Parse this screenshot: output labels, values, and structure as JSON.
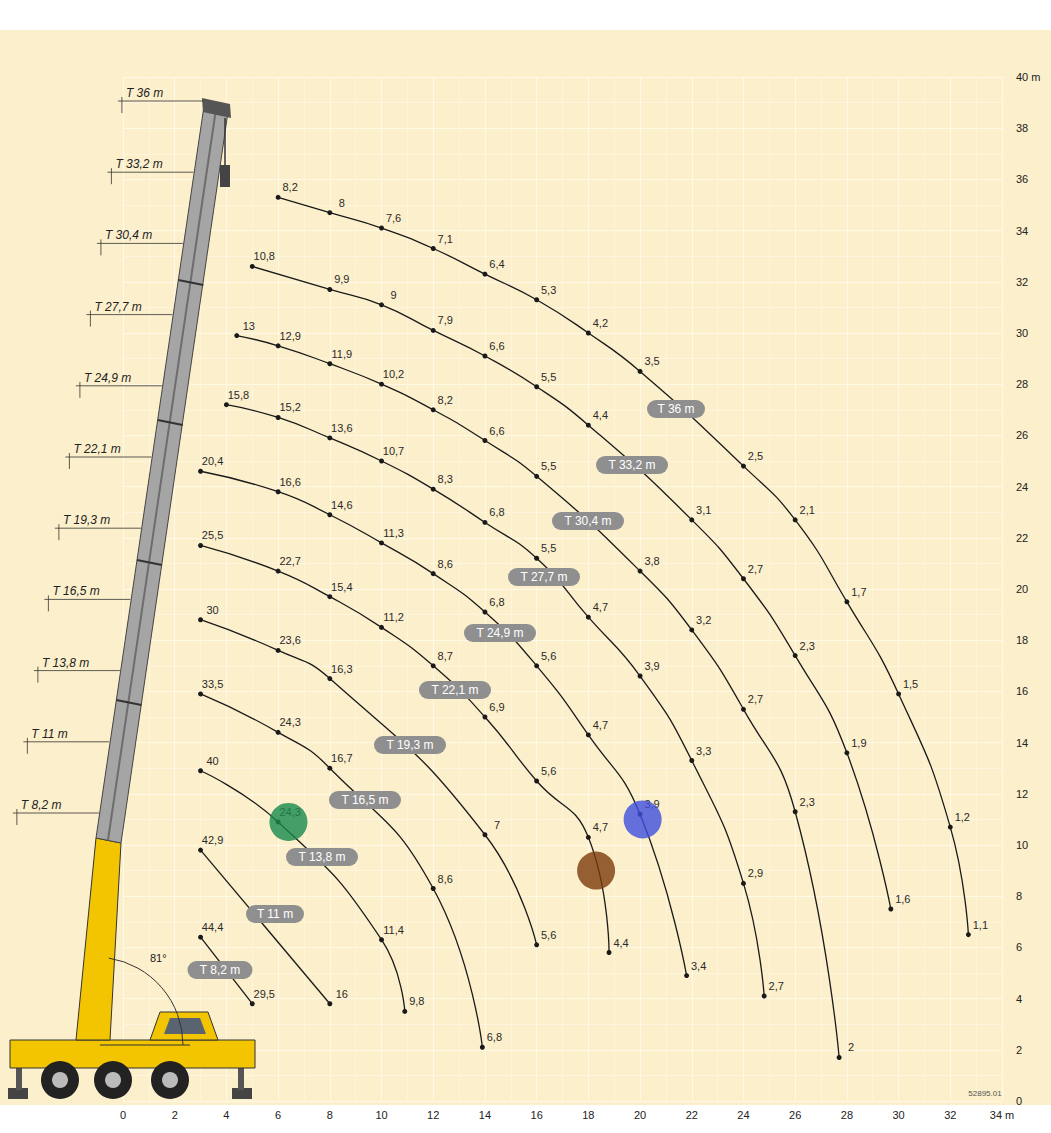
{
  "chart_data": {
    "type": "line",
    "xlim": [
      0,
      34
    ],
    "xticks": [
      0,
      2,
      4,
      6,
      8,
      10,
      12,
      14,
      16,
      18,
      20,
      22,
      24,
      26,
      28,
      30,
      32,
      {
        "value": 34,
        "label": "34 m"
      }
    ],
    "ylim": [
      0,
      40
    ],
    "yticks": [
      0,
      2,
      4,
      6,
      8,
      10,
      12,
      14,
      16,
      18,
      20,
      22,
      24,
      26,
      28,
      30,
      32,
      34,
      36,
      38,
      {
        "value": 40,
        "label": "40 m"
      }
    ],
    "grid": true,
    "data_labels": true,
    "marker": "circle",
    "line_style": "solid",
    "color": "#1a1a1a",
    "series": [
      {
        "name": "T 8,2 m",
        "x": [
          3,
          5
        ],
        "values": [
          6.4,
          3.8
        ],
        "loads": [
          44.4,
          29.5
        ],
        "load_labels": [
          "44,4",
          "29,5"
        ]
      },
      {
        "name": "T 11 m",
        "x": [
          3,
          8
        ],
        "values": [
          9.8,
          3.8
        ],
        "loads": [
          42.9,
          16
        ],
        "load_labels": [
          "42,9",
          "16"
        ]
      },
      {
        "name": "T 13,8 m",
        "x": [
          3,
          6,
          10,
          10.9
        ],
        "values": [
          12.9,
          10.9,
          6.3,
          3.5
        ],
        "loads": [
          40,
          24.3,
          11.4,
          9.8
        ],
        "load_labels": [
          "40",
          "24,3",
          "11,4",
          "9,8"
        ]
      },
      {
        "name": "T 16,5 m",
        "x": [
          3,
          6,
          8,
          12,
          13.9
        ],
        "values": [
          15.9,
          14.4,
          13.0,
          8.3,
          2.1
        ],
        "loads": [
          33.5,
          24.3,
          16.7,
          8.6,
          6.8
        ],
        "load_labels": [
          "33,5",
          "24,3",
          "16,7",
          "8,6",
          "6,8"
        ]
      },
      {
        "name": "T 19,3 m",
        "x": [
          3,
          6,
          8,
          14,
          16
        ],
        "values": [
          18.8,
          17.6,
          16.5,
          10.4,
          6.1
        ],
        "loads": [
          30,
          23.6,
          16.3,
          7,
          5.6
        ],
        "load_labels": [
          "30",
          "23,6",
          "16,3",
          "7",
          "5,6"
        ]
      },
      {
        "name": "T 22,1 m",
        "x": [
          3,
          6,
          8,
          10,
          12,
          14,
          16,
          18,
          18.8
        ],
        "values": [
          21.7,
          20.7,
          19.7,
          18.5,
          17.0,
          15.0,
          12.5,
          10.3,
          5.8
        ],
        "loads": [
          25.5,
          22.7,
          15.4,
          11.2,
          8.7,
          6.9,
          5.6,
          4.7,
          4.4
        ],
        "load_labels": [
          "25,5",
          "22,7",
          "15,4",
          "11,2",
          "8,7",
          "6,9",
          "5,6",
          "4,7",
          "4,4"
        ]
      },
      {
        "name": "T 24,9 m",
        "x": [
          3,
          6,
          8,
          10,
          12,
          14,
          16,
          18,
          20,
          21.8
        ],
        "values": [
          24.6,
          23.8,
          22.9,
          21.8,
          20.6,
          19.1,
          17.0,
          14.3,
          11.2,
          4.9
        ],
        "loads": [
          20.4,
          16.6,
          14.6,
          11.3,
          8.6,
          6.8,
          5.6,
          4.7,
          3.9,
          3.4
        ],
        "load_labels": [
          "20,4",
          "16,6",
          "14,6",
          "11,3",
          "8,6",
          "6,8",
          "5,6",
          "4,7",
          "3,9",
          "3,4"
        ]
      },
      {
        "name": "T 27,7 m",
        "x": [
          4,
          6,
          8,
          10,
          12,
          14,
          16,
          18,
          20,
          22,
          24,
          24.8
        ],
        "values": [
          27.2,
          26.7,
          25.9,
          25.0,
          23.9,
          22.6,
          21.2,
          18.9,
          16.6,
          13.3,
          8.5,
          4.1
        ],
        "loads": [
          15.8,
          15.2,
          13.6,
          10.7,
          8.3,
          6.8,
          5.5,
          4.7,
          3.9,
          3.3,
          2.9,
          2.7
        ],
        "load_labels": [
          "15,8",
          "15,2",
          "13,6",
          "10,7",
          "8,3",
          "6,8",
          "5,5",
          "4,7",
          "3,9",
          "3,3",
          "2,9",
          "2,7"
        ]
      },
      {
        "name": "T 30,4 m",
        "x": [
          4.4,
          6,
          8,
          10,
          12,
          14,
          16,
          20,
          22,
          24,
          26,
          27.7
        ],
        "values": [
          29.9,
          29.5,
          28.8,
          28.0,
          27.0,
          25.8,
          24.4,
          20.7,
          18.4,
          15.3,
          11.3,
          1.7
        ],
        "loads": [
          13,
          12.9,
          11.9,
          10.2,
          8.2,
          6.6,
          5.5,
          3.8,
          3.2,
          2.7,
          2.3,
          2
        ],
        "load_labels": [
          "13",
          "12,9",
          "11,9",
          "10,2",
          "8,2",
          "6,6",
          "5,5",
          "3,8",
          "3,2",
          "2,7",
          "2,3",
          "2"
        ]
      },
      {
        "name": "T 33,2 m",
        "x": [
          5,
          8,
          10,
          12,
          14,
          16,
          18,
          22,
          24,
          26,
          28,
          29.7
        ],
        "values": [
          32.6,
          31.7,
          31.1,
          30.1,
          29.1,
          27.9,
          26.4,
          22.7,
          20.4,
          17.4,
          13.6,
          7.5
        ],
        "loads": [
          10.8,
          9.9,
          9,
          7.9,
          6.6,
          5.5,
          4.4,
          3.1,
          2.7,
          2.3,
          1.9,
          1.6
        ],
        "load_labels": [
          "10,8",
          "9,9",
          "9",
          "7,9",
          "6,6",
          "5,5",
          "4,4",
          "3,1",
          "2,7",
          "2,3",
          "1,9",
          "1,6"
        ]
      },
      {
        "name": "T 36 m",
        "x": [
          6,
          8,
          10,
          12,
          14,
          16,
          18,
          20,
          24,
          26,
          28,
          30,
          32,
          32.7
        ],
        "values": [
          35.3,
          34.7,
          34.1,
          33.3,
          32.3,
          31.3,
          30.0,
          28.5,
          24.8,
          22.7,
          19.5,
          15.9,
          10.7,
          6.5
        ],
        "loads": [
          8.2,
          8,
          7.6,
          7.1,
          6.4,
          5.3,
          4.2,
          3.5,
          2.5,
          2.1,
          1.7,
          1.5,
          1.2,
          1.1
        ],
        "load_labels": [
          "8,2",
          "8",
          "7,6",
          "7,1",
          "6,4",
          "5,3",
          "4,2",
          "3,5",
          "2,5",
          "2,1",
          "1,7",
          "1,5",
          "1,2",
          "1,1"
        ]
      }
    ],
    "highlights": [
      {
        "x": 6.4,
        "y": 10.9,
        "color": "#178a4c"
      },
      {
        "x": 18.3,
        "y": 9.0,
        "color": "#7a3b0b"
      },
      {
        "x": 20.1,
        "y": 11.0,
        "color": "#3f4fe0"
      }
    ],
    "annotations": {
      "angle": "81°",
      "code": "52895.01"
    }
  }
}
